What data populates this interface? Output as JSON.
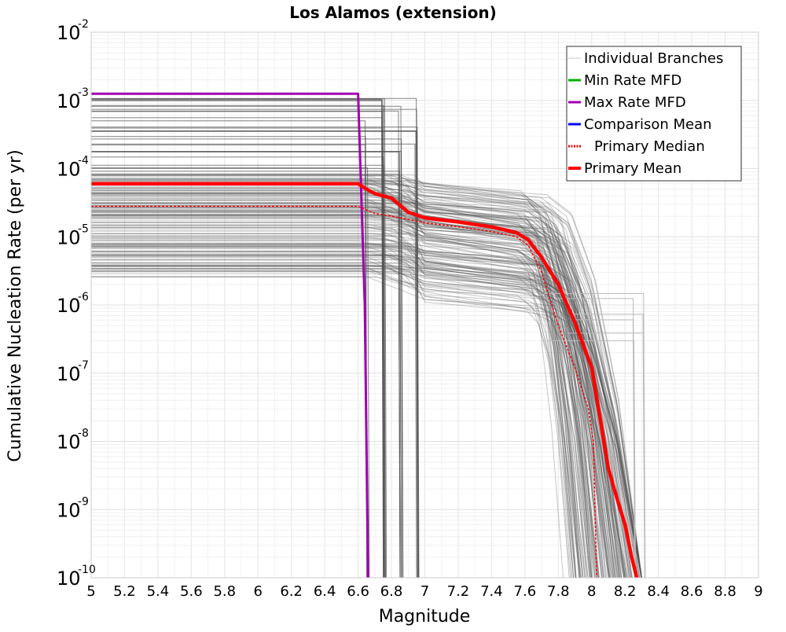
{
  "chart_data": {
    "type": "line",
    "title": "Los Alamos (extension)",
    "xlabel": "Magnitude",
    "ylabel": "Cumulative Nucleation Rate (per yr)",
    "xlim": [
      5,
      9
    ],
    "ylim": [
      1e-10,
      0.01
    ],
    "yscale": "log",
    "grid": true,
    "legend_position": "top-right",
    "x_ticks": [
      "5",
      "5.2",
      "5.4",
      "5.6",
      "5.8",
      "6",
      "6.2",
      "6.4",
      "6.6",
      "6.8",
      "7",
      "7.2",
      "7.4",
      "7.6",
      "7.8",
      "8",
      "8.2",
      "8.4",
      "8.6",
      "8.8",
      "9"
    ],
    "y_ticks": [
      {
        "base": "10",
        "exp": "-10",
        "value": 1e-10
      },
      {
        "base": "10",
        "exp": "-9",
        "value": 1e-09
      },
      {
        "base": "10",
        "exp": "-8",
        "value": 1e-08
      },
      {
        "base": "10",
        "exp": "-7",
        "value": 1e-07
      },
      {
        "base": "10",
        "exp": "-6",
        "value": 1e-06
      },
      {
        "base": "10",
        "exp": "-5",
        "value": 1e-05
      },
      {
        "base": "10",
        "exp": "-4",
        "value": 0.0001
      },
      {
        "base": "10",
        "exp": "-3",
        "value": 0.001
      },
      {
        "base": "10",
        "exp": "-2",
        "value": 0.01
      }
    ],
    "legend": [
      {
        "label": "Individual Branches",
        "color": "#c8c8c8",
        "style": "thin"
      },
      {
        "label": "Min Rate MFD",
        "color": "#00b000",
        "style": "solid"
      },
      {
        "label": "Max Rate MFD",
        "color": "#a000b0",
        "style": "solid"
      },
      {
        "label": "Comparison Mean",
        "color": "#0000ff",
        "style": "solid"
      },
      {
        "label": "Primary Median",
        "color": "#ff0000",
        "style": "dotted"
      },
      {
        "label": "Primary Mean",
        "color": "#ff0000",
        "style": "thick"
      }
    ],
    "branches_approx": {
      "color": "#505050",
      "plateau_rate_range": [
        1.8e-06,
        0.00125
      ],
      "step_cutoff_magnitudes": [
        6.65,
        6.75,
        6.85,
        6.95
      ],
      "taper_cutoff_range": [
        7.6,
        8.3
      ]
    },
    "series": [
      {
        "name": "Max Rate MFD",
        "color": "#a000b0",
        "x": [
          5.0,
          6.6,
          6.64,
          6.66
        ],
        "y": [
          0.00125,
          0.00125,
          1e-06,
          1e-10
        ]
      },
      {
        "name": "Primary Median",
        "color": "#ff0000",
        "style": "dotted",
        "x": [
          5.0,
          6.6,
          6.7,
          6.8,
          6.9,
          7.0,
          7.2,
          7.4,
          7.55,
          7.62,
          7.7,
          7.8,
          7.9,
          7.98,
          8.01,
          8.02,
          8.03
        ],
        "y": [
          2.8e-05,
          2.8e-05,
          2.2e-05,
          2e-05,
          1.8e-05,
          1.6e-05,
          1.4e-05,
          1.2e-05,
          1e-05,
          7.5e-06,
          3e-06,
          5e-07,
          1.2e-07,
          3e-08,
          1e-08,
          1e-09,
          1e-10
        ]
      },
      {
        "name": "Primary Mean",
        "color": "#ff0000",
        "style": "thick",
        "x": [
          5.0,
          6.6,
          6.65,
          6.7,
          6.8,
          6.9,
          7.0,
          7.2,
          7.4,
          7.55,
          7.62,
          7.7,
          7.8,
          7.9,
          8.0,
          8.1,
          8.15,
          8.2,
          8.24,
          8.27
        ],
        "y": [
          6e-05,
          6e-05,
          5e-05,
          4.3e-05,
          3.7e-05,
          2.3e-05,
          1.9e-05,
          1.65e-05,
          1.4e-05,
          1.15e-05,
          9e-06,
          5e-06,
          2e-06,
          5.5e-07,
          1.2e-07,
          4e-09,
          1.5e-09,
          6e-10,
          2e-10,
          1e-10
        ]
      }
    ]
  }
}
